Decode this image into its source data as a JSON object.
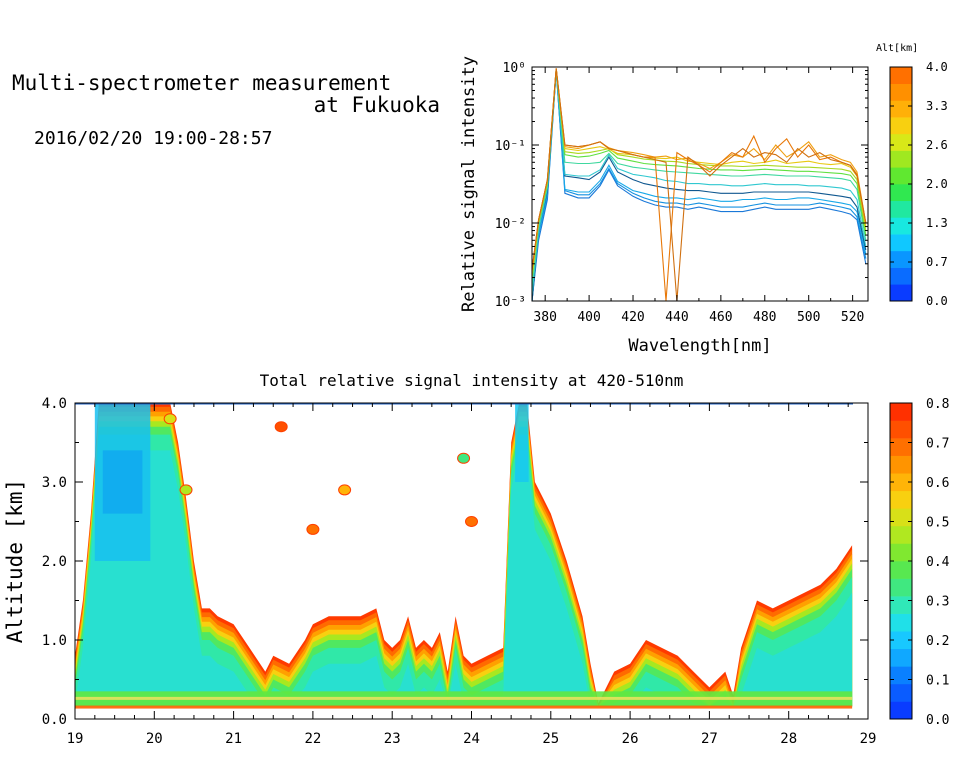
{
  "header": {
    "title_line1": "Multi-spectrometer measurement",
    "title_line2": "at Fukuoka",
    "date_range": "2016/02/20 19:00-28:57"
  },
  "chart_data": [
    {
      "type": "line",
      "xlabel": "Wavelength[nm]",
      "ylabel": "Relative signal intensity",
      "yscale": "log",
      "xlim": [
        374,
        527
      ],
      "ylim": [
        0.001,
        1
      ],
      "x_ticks": [
        380,
        400,
        420,
        440,
        460,
        480,
        500,
        520
      ],
      "y_tick_labels": [
        "10⁻³",
        "10⁻²",
        "10⁻¹",
        "10⁰"
      ],
      "colorbar": {
        "label": "Alt[km]",
        "range": [
          0.0,
          4.0
        ],
        "tick_labels": [
          "4.0",
          "3.3",
          "2.6",
          "2.0",
          "1.3",
          "0.7",
          "0.0"
        ],
        "colors": [
          "#0a3cff",
          "#0a6cff",
          "#0a96ff",
          "#10c8ff",
          "#18e8e0",
          "#20e8a0",
          "#30e850",
          "#60e830",
          "#a0e820",
          "#d8e818",
          "#f8d010",
          "#ffb008",
          "#ff9000",
          "#ff7000"
        ]
      },
      "x": [
        374,
        377,
        381,
        385,
        389,
        395,
        400,
        405,
        409,
        413,
        420,
        425,
        430,
        435,
        440,
        445,
        450,
        455,
        460,
        465,
        470,
        475,
        480,
        485,
        490,
        495,
        500,
        505,
        510,
        515,
        519,
        522,
        526
      ],
      "series": [
        {
          "alt": 0.3,
          "color": "#1a78d8",
          "values": [
            0.001,
            0.006,
            0.02,
            0.9,
            0.024,
            0.021,
            0.021,
            0.03,
            0.048,
            0.03,
            0.022,
            0.019,
            0.017,
            0.016,
            0.016,
            0.015,
            0.016,
            0.015,
            0.014,
            0.014,
            0.014,
            0.015,
            0.016,
            0.015,
            0.015,
            0.015,
            0.015,
            0.016,
            0.015,
            0.014,
            0.013,
            0.011,
            0.003
          ]
        },
        {
          "alt": 0.5,
          "color": "#1490e0",
          "values": [
            0.001,
            0.007,
            0.022,
            0.9,
            0.026,
            0.023,
            0.023,
            0.032,
            0.05,
            0.032,
            0.024,
            0.021,
            0.019,
            0.018,
            0.018,
            0.017,
            0.018,
            0.017,
            0.016,
            0.016,
            0.016,
            0.017,
            0.018,
            0.017,
            0.017,
            0.017,
            0.017,
            0.018,
            0.017,
            0.016,
            0.015,
            0.012,
            0.0035
          ]
        },
        {
          "alt": 0.7,
          "color": "#18a8e8",
          "values": [
            0.001,
            0.007,
            0.025,
            0.9,
            0.027,
            0.025,
            0.025,
            0.035,
            0.055,
            0.034,
            0.026,
            0.024,
            0.022,
            0.021,
            0.021,
            0.02,
            0.021,
            0.02,
            0.019,
            0.019,
            0.02,
            0.02,
            0.021,
            0.02,
            0.02,
            0.021,
            0.021,
            0.02,
            0.019,
            0.018,
            0.017,
            0.014,
            0.004
          ]
        },
        {
          "alt": 0.9,
          "color": "#105890",
          "values": [
            0.001,
            0.008,
            0.026,
            0.92,
            0.04,
            0.038,
            0.036,
            0.045,
            0.07,
            0.045,
            0.036,
            0.032,
            0.03,
            0.028,
            0.027,
            0.026,
            0.026,
            0.025,
            0.024,
            0.024,
            0.024,
            0.025,
            0.025,
            0.025,
            0.025,
            0.025,
            0.025,
            0.024,
            0.023,
            0.022,
            0.021,
            0.016,
            0.0045
          ]
        },
        {
          "alt": 1.2,
          "color": "#30c8d0",
          "values": [
            0.0012,
            0.008,
            0.028,
            0.92,
            0.042,
            0.04,
            0.04,
            0.048,
            0.075,
            0.05,
            0.042,
            0.04,
            0.038,
            0.035,
            0.034,
            0.032,
            0.032,
            0.031,
            0.031,
            0.03,
            0.03,
            0.031,
            0.032,
            0.031,
            0.031,
            0.031,
            0.03,
            0.03,
            0.029,
            0.028,
            0.026,
            0.02,
            0.005
          ]
        },
        {
          "alt": 1.6,
          "color": "#40d8a0",
          "values": [
            0.0015,
            0.009,
            0.03,
            0.93,
            0.06,
            0.058,
            0.058,
            0.06,
            0.078,
            0.058,
            0.052,
            0.05,
            0.048,
            0.046,
            0.045,
            0.044,
            0.043,
            0.042,
            0.041,
            0.04,
            0.04,
            0.041,
            0.042,
            0.041,
            0.04,
            0.04,
            0.04,
            0.039,
            0.038,
            0.037,
            0.035,
            0.027,
            0.006
          ]
        },
        {
          "alt": 2.0,
          "color": "#60e040",
          "values": [
            0.002,
            0.01,
            0.032,
            0.94,
            0.075,
            0.07,
            0.072,
            0.078,
            0.085,
            0.068,
            0.062,
            0.058,
            0.056,
            0.055,
            0.054,
            0.052,
            0.05,
            0.049,
            0.048,
            0.048,
            0.047,
            0.048,
            0.049,
            0.048,
            0.047,
            0.046,
            0.046,
            0.045,
            0.044,
            0.043,
            0.041,
            0.032,
            0.007
          ]
        },
        {
          "alt": 2.4,
          "color": "#a8d820",
          "values": [
            0.002,
            0.01,
            0.034,
            0.95,
            0.082,
            0.078,
            0.08,
            0.085,
            0.09,
            0.075,
            0.07,
            0.066,
            0.064,
            0.062,
            0.061,
            0.058,
            0.056,
            0.055,
            0.054,
            0.054,
            0.053,
            0.054,
            0.055,
            0.054,
            0.053,
            0.052,
            0.052,
            0.051,
            0.05,
            0.049,
            0.046,
            0.036,
            0.008
          ]
        },
        {
          "alt": 2.8,
          "color": "#e8c810",
          "values": [
            0.0022,
            0.011,
            0.035,
            0.95,
            0.09,
            0.085,
            0.09,
            0.095,
            0.088,
            0.078,
            0.075,
            0.07,
            0.068,
            0.067,
            0.07,
            0.062,
            0.06,
            0.058,
            0.056,
            0.06,
            0.062,
            0.058,
            0.06,
            0.064,
            0.058,
            0.06,
            0.062,
            0.058,
            0.056,
            0.058,
            0.052,
            0.04,
            0.009
          ]
        },
        {
          "alt": 3.3,
          "color": "#f0a010",
          "values": [
            0.0025,
            0.011,
            0.036,
            0.96,
            0.095,
            0.09,
            0.1,
            0.11,
            0.092,
            0.085,
            0.08,
            0.075,
            0.07,
            0.072,
            0.065,
            0.068,
            0.058,
            0.05,
            0.06,
            0.075,
            0.07,
            0.09,
            0.065,
            0.1,
            0.07,
            0.085,
            0.11,
            0.07,
            0.075,
            0.065,
            0.06,
            0.045,
            0.01
          ]
        },
        {
          "alt": 3.7,
          "color": "#e87808",
          "values": [
            0.0025,
            0.011,
            0.036,
            0.96,
            0.1,
            0.095,
            0.1,
            0.11,
            0.09,
            0.085,
            0.075,
            0.07,
            0.07,
            0.001,
            0.08,
            0.065,
            0.055,
            0.045,
            0.06,
            0.08,
            0.07,
            0.13,
            0.06,
            0.09,
            0.12,
            0.07,
            0.1,
            0.065,
            0.07,
            0.06,
            0.055,
            0.042,
            0.01
          ]
        },
        {
          "alt": 3.9,
          "color": "#d07010",
          "values": [
            0.0025,
            0.011,
            0.036,
            0.96,
            0.1,
            0.095,
            0.1,
            0.11,
            0.09,
            0.085,
            0.075,
            0.07,
            0.065,
            0.06,
            0.001,
            0.07,
            0.055,
            0.04,
            0.055,
            0.07,
            0.09,
            0.07,
            0.08,
            0.075,
            0.06,
            0.09,
            0.07,
            0.08,
            0.065,
            0.06,
            0.055,
            0.04,
            0.01
          ]
        }
      ]
    },
    {
      "type": "heatmap",
      "title": "Total relative signal intensity at 420-510nm",
      "ylabel": "Altitude [km]",
      "xlabel": "",
      "xlim": [
        19,
        29
      ],
      "ylim": [
        0.0,
        4.0
      ],
      "x_ticks": [
        "19",
        "20",
        "21",
        "22",
        "23",
        "24",
        "25",
        "26",
        "27",
        "28",
        "29"
      ],
      "y_ticks": [
        "0.0",
        "1.0",
        "2.0",
        "3.0",
        "4.0"
      ],
      "colorbar": {
        "range": [
          0.0,
          0.8
        ],
        "tick_labels": [
          "0.8",
          "0.7",
          "0.6",
          "0.5",
          "0.4",
          "0.3",
          "0.2",
          "0.1",
          "0.0"
        ],
        "colors": [
          "#0a3cff",
          "#0a5cff",
          "#0a80ff",
          "#10a8ff",
          "#18c8ff",
          "#20e0e8",
          "#30e8b8",
          "#40e880",
          "#58e850",
          "#80e830",
          "#b0e820",
          "#d8e018",
          "#f8d010",
          "#ffb408",
          "#ff9400",
          "#ff7000",
          "#ff5000",
          "#ff3000"
        ]
      },
      "profile_top_km": {
        "x": [
          19.0,
          19.1,
          19.2,
          19.3,
          19.4,
          19.6,
          19.8,
          20.0,
          20.2,
          20.3,
          20.4,
          20.5,
          20.6,
          20.7,
          20.8,
          21.0,
          21.2,
          21.4,
          21.5,
          21.7,
          21.9,
          22.0,
          22.2,
          22.4,
          22.6,
          22.8,
          22.9,
          23.0,
          23.1,
          23.2,
          23.3,
          23.4,
          23.5,
          23.6,
          23.7,
          23.8,
          23.9,
          24.0,
          24.2,
          24.4,
          24.5,
          24.6,
          24.7,
          24.8,
          24.9,
          25.0,
          25.2,
          25.4,
          25.5,
          25.6,
          25.8,
          26.0,
          26.2,
          26.4,
          26.6,
          26.8,
          27.0,
          27.2,
          27.3,
          27.4,
          27.6,
          27.8,
          28.0,
          28.2,
          28.4,
          28.6,
          28.8
        ],
        "top": [
          0.8,
          1.5,
          2.6,
          4.0,
          4.0,
          4.0,
          4.0,
          4.0,
          4.0,
          3.5,
          2.8,
          2.0,
          1.4,
          1.4,
          1.3,
          1.2,
          0.9,
          0.6,
          0.8,
          0.7,
          1.0,
          1.2,
          1.3,
          1.3,
          1.3,
          1.4,
          1.0,
          0.9,
          1.0,
          1.3,
          0.9,
          1.0,
          0.9,
          1.1,
          0.6,
          1.3,
          0.8,
          0.7,
          0.8,
          0.9,
          3.5,
          4.0,
          4.0,
          3.0,
          2.8,
          2.6,
          2.0,
          1.3,
          0.7,
          0.2,
          0.6,
          0.7,
          1.0,
          0.9,
          0.8,
          0.6,
          0.4,
          0.6,
          0.3,
          0.9,
          1.5,
          1.4,
          1.5,
          1.6,
          1.7,
          1.9,
          2.2
        ]
      },
      "high_patches": [
        {
          "t": 20.2,
          "alt": 3.8,
          "value": 0.5
        },
        {
          "t": 20.4,
          "alt": 2.9,
          "value": 0.45
        },
        {
          "t": 22.4,
          "alt": 2.9,
          "value": 0.6
        },
        {
          "t": 23.9,
          "alt": 3.3,
          "value": 0.35
        },
        {
          "t": 24.0,
          "alt": 2.5,
          "value": 0.7
        },
        {
          "t": 21.6,
          "alt": 3.7,
          "value": 0.75
        },
        {
          "t": 22.0,
          "alt": 2.4,
          "value": 0.7
        }
      ]
    }
  ]
}
